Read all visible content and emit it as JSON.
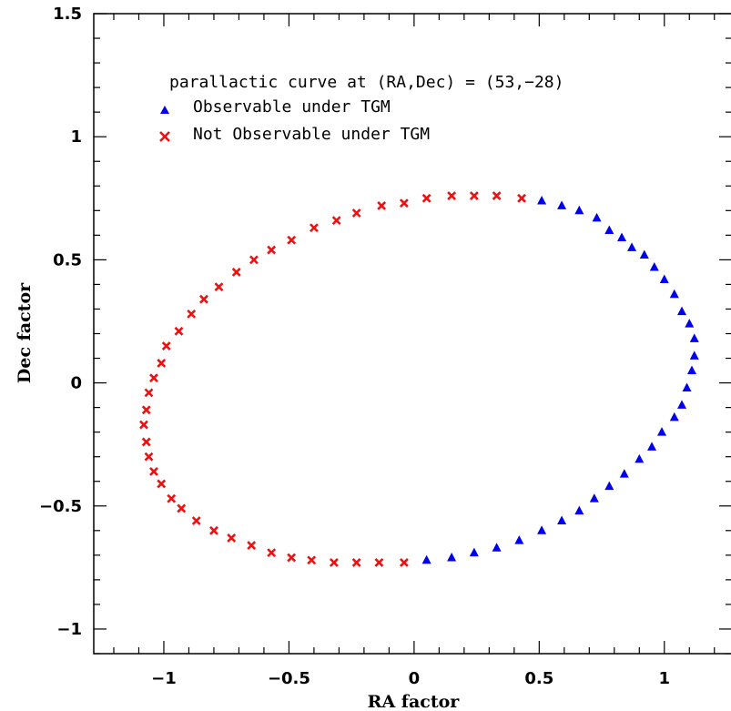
{
  "chart_data": {
    "type": "scatter",
    "title": "",
    "xlabel": "RA factor",
    "ylabel": "Dec factor",
    "xlim": [
      -1.28,
      1.27
    ],
    "ylim": [
      -1.1,
      1.5
    ],
    "xticks": [
      {
        "value": -1,
        "label": "−1"
      },
      {
        "value": -0.5,
        "label": "−0.5"
      },
      {
        "value": 0,
        "label": "0"
      },
      {
        "value": 0.5,
        "label": "0.5"
      },
      {
        "value": 1,
        "label": "1"
      }
    ],
    "yticks": [
      {
        "value": -1,
        "label": "−1"
      },
      {
        "value": -0.5,
        "label": "−0.5"
      },
      {
        "value": 0,
        "label": "0"
      },
      {
        "value": 0.5,
        "label": "0.5"
      },
      {
        "value": 1,
        "label": "1"
      },
      {
        "value": 1.5,
        "label": "1.5"
      }
    ],
    "grid": false,
    "legend_position": "top-left",
    "legend_title": "parallactic curve at (RA,Dec) = (53,−28)",
    "series": [
      {
        "name": "Observable under TGM",
        "marker": "triangle",
        "color": "#0000ee",
        "points": [
          [
            0.51,
            0.74
          ],
          [
            0.59,
            0.72
          ],
          [
            0.66,
            0.7
          ],
          [
            0.73,
            0.67
          ],
          [
            0.78,
            0.62
          ],
          [
            0.83,
            0.59
          ],
          [
            0.87,
            0.55
          ],
          [
            0.92,
            0.52
          ],
          [
            0.96,
            0.47
          ],
          [
            1.0,
            0.42
          ],
          [
            1.04,
            0.36
          ],
          [
            1.07,
            0.29
          ],
          [
            1.1,
            0.24
          ],
          [
            1.12,
            0.18
          ],
          [
            1.12,
            0.11
          ],
          [
            1.11,
            0.05
          ],
          [
            1.09,
            -0.02
          ],
          [
            1.07,
            -0.09
          ],
          [
            1.04,
            -0.14
          ],
          [
            0.99,
            -0.2
          ],
          [
            0.95,
            -0.26
          ],
          [
            0.9,
            -0.31
          ],
          [
            0.84,
            -0.37
          ],
          [
            0.78,
            -0.42
          ],
          [
            0.72,
            -0.47
          ],
          [
            0.66,
            -0.52
          ],
          [
            0.59,
            -0.56
          ],
          [
            0.51,
            -0.6
          ],
          [
            0.42,
            -0.64
          ],
          [
            0.33,
            -0.67
          ],
          [
            0.24,
            -0.69
          ],
          [
            0.15,
            -0.71
          ],
          [
            0.05,
            -0.72
          ]
        ]
      },
      {
        "name": "Not Observable under TGM",
        "marker": "cross",
        "color": "#ee1111",
        "points": [
          [
            0.43,
            0.75
          ],
          [
            0.33,
            0.76
          ],
          [
            0.24,
            0.76
          ],
          [
            0.15,
            0.76
          ],
          [
            0.05,
            0.75
          ],
          [
            -0.04,
            0.73
          ],
          [
            -0.13,
            0.72
          ],
          [
            -0.23,
            0.69
          ],
          [
            -0.31,
            0.66
          ],
          [
            -0.4,
            0.63
          ],
          [
            -0.49,
            0.58
          ],
          [
            -0.57,
            0.54
          ],
          [
            -0.64,
            0.5
          ],
          [
            -0.71,
            0.45
          ],
          [
            -0.78,
            0.39
          ],
          [
            -0.84,
            0.34
          ],
          [
            -0.89,
            0.28
          ],
          [
            -0.94,
            0.21
          ],
          [
            -0.99,
            0.15
          ],
          [
            -1.01,
            0.08
          ],
          [
            -1.04,
            0.02
          ],
          [
            -1.06,
            -0.04
          ],
          [
            -1.07,
            -0.11
          ],
          [
            -1.08,
            -0.17
          ],
          [
            -1.07,
            -0.24
          ],
          [
            -1.06,
            -0.3
          ],
          [
            -1.04,
            -0.36
          ],
          [
            -1.01,
            -0.41
          ],
          [
            -0.97,
            -0.47
          ],
          [
            -0.93,
            -0.51
          ],
          [
            -0.87,
            -0.56
          ],
          [
            -0.8,
            -0.6
          ],
          [
            -0.73,
            -0.63
          ],
          [
            -0.65,
            -0.66
          ],
          [
            -0.57,
            -0.69
          ],
          [
            -0.49,
            -0.71
          ],
          [
            -0.41,
            -0.72
          ],
          [
            -0.32,
            -0.73
          ],
          [
            -0.23,
            -0.73
          ],
          [
            -0.14,
            -0.73
          ],
          [
            -0.04,
            -0.73
          ]
        ]
      }
    ]
  }
}
